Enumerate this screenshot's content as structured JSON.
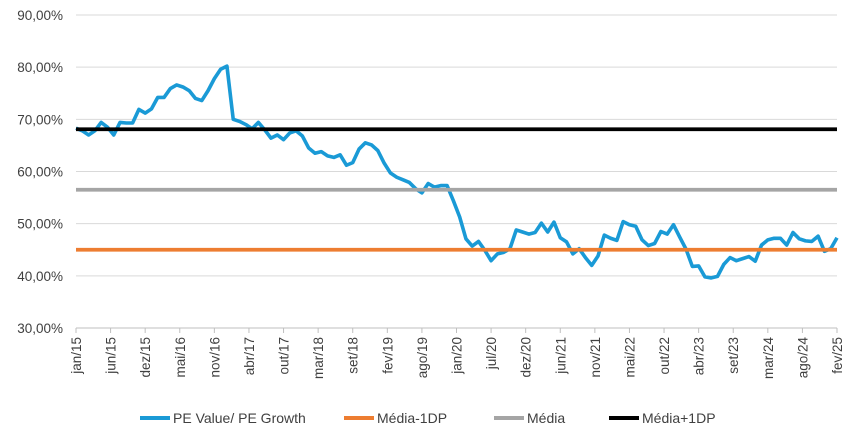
{
  "chart_data": {
    "type": "line",
    "grid": true,
    "legend_position": "bottom",
    "y_ticks": [
      "30,00%",
      "40,00%",
      "50,00%",
      "60,00%",
      "70,00%",
      "80,00%",
      "90,00%"
    ],
    "ylim": [
      30,
      90
    ],
    "x_ticks": [
      "jan/15",
      "jun/15",
      "dez/15",
      "mai/16",
      "nov/16",
      "abr/17",
      "out/17",
      "mar/18",
      "set/18",
      "fev/19",
      "ago/19",
      "jan/20",
      "jul/20",
      "dez/20",
      "jun/21",
      "nov/21",
      "mai/22",
      "out/22",
      "abr/23",
      "set/23",
      "mar/24",
      "ago/24",
      "fev/25"
    ],
    "x_start": "jan/15",
    "x_end": "fev/25",
    "series": [
      {
        "name": "PE Value/ PE Growth",
        "color": "#1a9ad6",
        "values": [
          68.3,
          67.8,
          67.0,
          67.8,
          69.4,
          68.5,
          67.0,
          69.4,
          69.3,
          69.3,
          71.9,
          71.2,
          72.0,
          74.2,
          74.2,
          75.9,
          76.6,
          76.2,
          75.5,
          74.0,
          73.6,
          75.5,
          77.8,
          79.6,
          80.2,
          70.0,
          69.6,
          69.0,
          68.2,
          69.4,
          68.0,
          66.4,
          67.0,
          66.1,
          67.4,
          67.8,
          66.8,
          64.5,
          63.5,
          63.8,
          63.0,
          62.7,
          63.2,
          61.2,
          61.7,
          64.3,
          65.5,
          65.1,
          64.0,
          61.6,
          59.7,
          58.9,
          58.4,
          57.9,
          56.7,
          55.9,
          57.7,
          57.0,
          57.3,
          57.3,
          54.4,
          51.3,
          47.1,
          45.7,
          46.6,
          44.9,
          42.9,
          44.2,
          44.5,
          45.2,
          48.8,
          48.4,
          48.0,
          48.3,
          50.1,
          48.4,
          50.3,
          47.3,
          46.5,
          44.2,
          45.2,
          43.5,
          42.0,
          43.8,
          47.8,
          47.2,
          46.8,
          50.4,
          49.8,
          49.5,
          46.9,
          45.8,
          46.2,
          48.5,
          48.0,
          49.8,
          47.4,
          45.1,
          41.8,
          41.9,
          39.8,
          39.6,
          39.9,
          42.2,
          43.5,
          42.9,
          43.3,
          43.7,
          42.8,
          45.9,
          46.9,
          47.2,
          47.2,
          45.9,
          48.3,
          47.1,
          46.7,
          46.6,
          47.6,
          44.7,
          45.2,
          47.3
        ]
      },
      {
        "name": "Média-1DP",
        "color": "#ed7d31",
        "values": [
          45.0
        ]
      },
      {
        "name": "Média",
        "color": "#a5a5a5",
        "values": [
          56.5
        ]
      },
      {
        "name": "Média+1DP",
        "color": "#000000",
        "values": [
          68.1
        ]
      }
    ]
  }
}
